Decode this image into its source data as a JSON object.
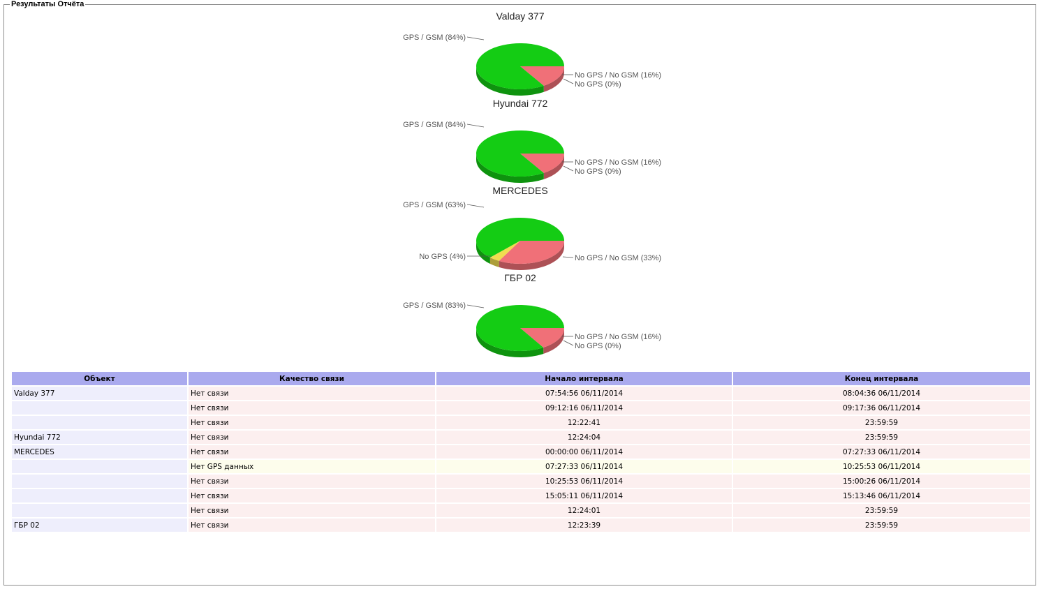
{
  "window": {
    "legend": "Результаты Отчёта"
  },
  "colors": {
    "gps_gsm": "#14cc14",
    "no_gps_no_gsm": "#f07078",
    "no_gps": "#f0dc50"
  },
  "charts": [
    {
      "title": "Valday 377",
      "slices": [
        {
          "label": "GPS / GSM (84%)",
          "value": 84,
          "color": "#14cc14"
        },
        {
          "label": "No GPS / No GSM (16%)",
          "value": 16,
          "color": "#f07078"
        },
        {
          "label": "No GPS (0%)",
          "value": 0,
          "color": "#f0dc50"
        }
      ]
    },
    {
      "title": "Hyundai 772",
      "slices": [
        {
          "label": "GPS / GSM (84%)",
          "value": 84,
          "color": "#14cc14"
        },
        {
          "label": "No GPS / No GSM (16%)",
          "value": 16,
          "color": "#f07078"
        },
        {
          "label": "No GPS (0%)",
          "value": 0,
          "color": "#f0dc50"
        }
      ]
    },
    {
      "title": "MERCEDES",
      "slices": [
        {
          "label": "GPS / GSM (63%)",
          "value": 63,
          "color": "#14cc14"
        },
        {
          "label": "No GPS / No GSM (33%)",
          "value": 33,
          "color": "#f07078"
        },
        {
          "label": "No GPS (4%)",
          "value": 4,
          "color": "#f0dc50"
        }
      ]
    },
    {
      "title": "ГБР 02",
      "slices": [
        {
          "label": "GPS / GSM (83%)",
          "value": 83,
          "color": "#14cc14"
        },
        {
          "label": "No GPS / No GSM (16%)",
          "value": 16,
          "color": "#f07078"
        },
        {
          "label": "No GPS (0%)",
          "value": 0,
          "color": "#f0dc50"
        }
      ]
    }
  ],
  "chart_data": [
    {
      "type": "pie",
      "title": "Valday 377",
      "categories": [
        "GPS / GSM",
        "No GPS / No GSM",
        "No GPS"
      ],
      "values": [
        84,
        16,
        0
      ]
    },
    {
      "type": "pie",
      "title": "Hyundai 772",
      "categories": [
        "GPS / GSM",
        "No GPS / No GSM",
        "No GPS"
      ],
      "values": [
        84,
        16,
        0
      ]
    },
    {
      "type": "pie",
      "title": "MERCEDES",
      "categories": [
        "GPS / GSM",
        "No GPS / No GSM",
        "No GPS"
      ],
      "values": [
        63,
        33,
        4
      ]
    },
    {
      "type": "pie",
      "title": "ГБР 02",
      "categories": [
        "GPS / GSM",
        "No GPS / No GSM",
        "No GPS"
      ],
      "values": [
        83,
        16,
        0
      ]
    }
  ],
  "table": {
    "headers": [
      "Объект",
      "Качество связи",
      "Начало интервала",
      "Конец интервала"
    ],
    "rows": [
      {
        "object": "Valday 377",
        "quality": "Нет связи",
        "start": "07:54:56 06/11/2014",
        "end": "08:04:36 06/11/2014",
        "kind": "red"
      },
      {
        "object": "",
        "quality": "Нет связи",
        "start": "09:12:16 06/11/2014",
        "end": "09:17:36 06/11/2014",
        "kind": "red"
      },
      {
        "object": "",
        "quality": "Нет связи",
        "start": "12:22:41",
        "end": "23:59:59",
        "kind": "red"
      },
      {
        "object": "Hyundai 772",
        "quality": "Нет связи",
        "start": "12:24:04",
        "end": "23:59:59",
        "kind": "red"
      },
      {
        "object": "MERCEDES",
        "quality": "Нет связи",
        "start": "00:00:00 06/11/2014",
        "end": "07:27:33 06/11/2014",
        "kind": "red"
      },
      {
        "object": "",
        "quality": "Нет GPS данных",
        "start": "07:27:33 06/11/2014",
        "end": "10:25:53 06/11/2014",
        "kind": "yel"
      },
      {
        "object": "",
        "quality": "Нет связи",
        "start": "10:25:53 06/11/2014",
        "end": "15:00:26 06/11/2014",
        "kind": "red"
      },
      {
        "object": "",
        "quality": "Нет связи",
        "start": "15:05:11 06/11/2014",
        "end": "15:13:46 06/11/2014",
        "kind": "red"
      },
      {
        "object": "",
        "quality": "Нет связи",
        "start": "12:24:01",
        "end": "23:59:59",
        "kind": "red"
      },
      {
        "object": "ГБР 02",
        "quality": "Нет связи",
        "start": "12:23:39",
        "end": "23:59:59",
        "kind": "red"
      }
    ]
  }
}
